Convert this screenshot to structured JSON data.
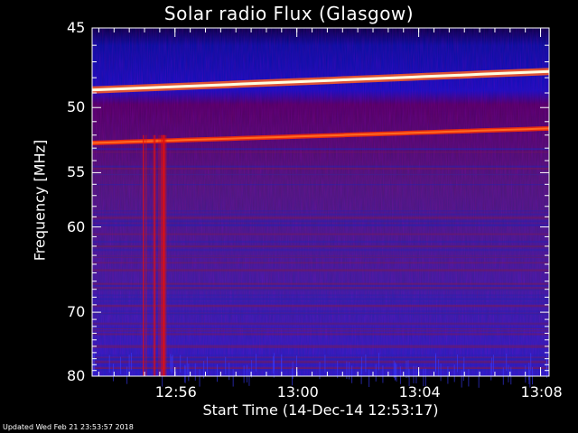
{
  "chart_data": {
    "type": "heatmap",
    "title": "Solar radio Flux (Glasgow)",
    "xlabel": "Start Time (14-Dec-14 12:53:17)",
    "ylabel": "Frequency [MHz]",
    "x_ticks": [
      "12:56",
      "13:00",
      "13:04",
      "13:08"
    ],
    "x_tick_minutes": [
      2.72,
      6.72,
      10.72,
      14.72
    ],
    "x_range_minutes": [
      0,
      15.0
    ],
    "y_ticks": [
      45,
      50,
      55,
      60,
      70,
      80
    ],
    "y_range": [
      45,
      80
    ],
    "y_scale": "reciprocal",
    "colorscale": [
      "#000030",
      "#0000c0",
      "#3030ff",
      "#603080",
      "#a02020",
      "#ff3000",
      "#ffffa0",
      "#ffffff"
    ],
    "features": [
      {
        "kind": "horizontal_band",
        "freq_mhz_start": 48.8,
        "freq_mhz_end": 47.6,
        "time_start_min": 0,
        "time_end_min": 15.0,
        "level": "very_high"
      },
      {
        "kind": "horizontal_band",
        "freq_mhz_start": 52.6,
        "freq_mhz_end": 51.5,
        "time_start_min": 0,
        "time_end_min": 15.0,
        "level": "high"
      },
      {
        "kind": "vertical_burst",
        "time_start_min": 1.6,
        "time_end_min": 2.4,
        "freq_mhz_start": 52,
        "freq_mhz_end": 80,
        "level": "high"
      }
    ]
  },
  "footer": {
    "updated": "Updated Wed Feb 21 23:53:57 2018"
  }
}
